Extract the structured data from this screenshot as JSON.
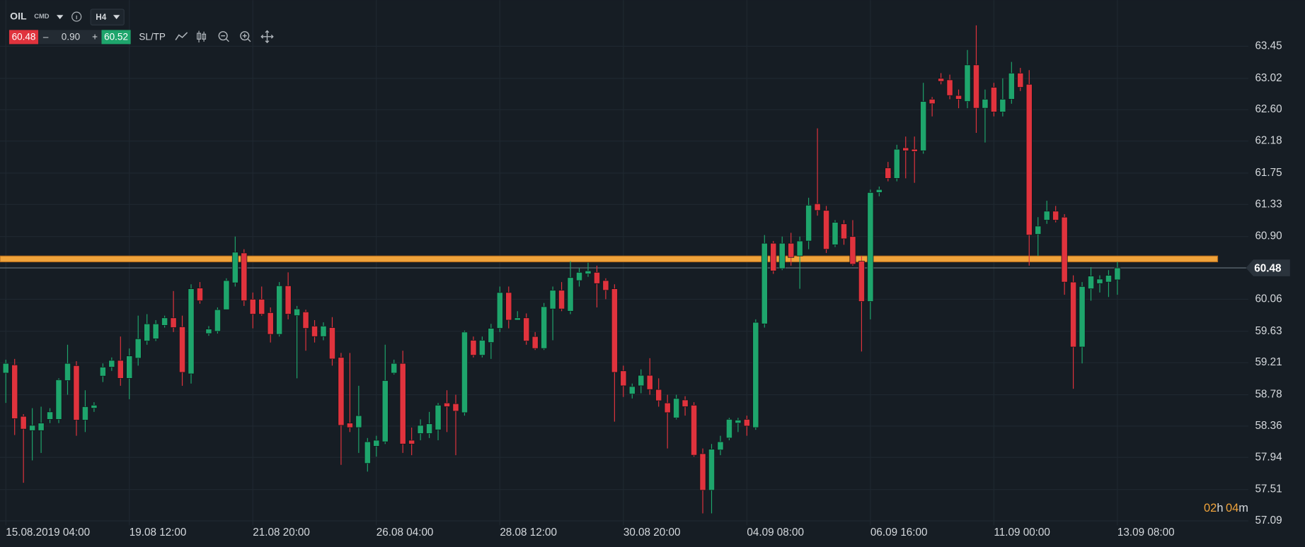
{
  "toolbar": {
    "symbol": "OIL",
    "market": "CMD",
    "timeframe": "H4",
    "bid": "60.48",
    "minus": "–",
    "spread": "0.90",
    "plus": "+",
    "ask": "60.52",
    "sltp": "SL/TP"
  },
  "countdown": {
    "hours": "02",
    "hours_unit": "h",
    "minutes": "04",
    "minutes_unit": "m"
  },
  "chart_data": {
    "type": "candlestick",
    "up_color": "#1ea56c",
    "down_color": "#e0333d",
    "grid": true,
    "level_color": "#f0a33a",
    "level": 60.6,
    "current_price": 60.48,
    "ylim": [
      57.03,
      63.98
    ],
    "yticks": [
      57.09,
      57.51,
      57.94,
      58.36,
      58.78,
      59.21,
      59.63,
      60.06,
      {
        "value": 60.9,
        "label": "60.90"
      },
      61.33,
      61.75,
      62.18,
      {
        "value": 62.6,
        "label": "62.60"
      },
      63.02,
      63.45
    ],
    "categories": [
      "15.08.2019 04:00",
      null,
      null,
      null,
      null,
      null,
      null,
      null,
      null,
      null,
      null,
      null,
      null,
      null,
      "19.08 12:00",
      null,
      null,
      null,
      null,
      null,
      null,
      null,
      null,
      null,
      null,
      null,
      null,
      null,
      "21.08 20:00",
      null,
      null,
      null,
      null,
      null,
      null,
      null,
      null,
      null,
      null,
      null,
      null,
      null,
      "26.08 04:00",
      null,
      null,
      null,
      null,
      null,
      null,
      null,
      null,
      null,
      null,
      null,
      null,
      null,
      "28.08 12:00",
      null,
      null,
      null,
      null,
      null,
      null,
      null,
      null,
      null,
      null,
      null,
      null,
      null,
      "30.08 20:00",
      null,
      null,
      null,
      null,
      null,
      null,
      null,
      null,
      null,
      null,
      null,
      null,
      null,
      "04.09 08:00",
      null,
      null,
      null,
      null,
      null,
      null,
      null,
      null,
      null,
      null,
      null,
      null,
      null,
      "06.09 16:00",
      null,
      null,
      null,
      null,
      null,
      null,
      null,
      null,
      null,
      null,
      null,
      null,
      null,
      "11.09 00:00",
      null,
      null,
      null,
      null,
      null,
      null,
      null,
      null,
      null,
      null,
      null,
      null,
      null,
      "13.09 08:00"
    ],
    "open": [
      59.07,
      59.18,
      58.49,
      58.3,
      58.3,
      58.45,
      58.45,
      58.97,
      59.17,
      58.44,
      58.6,
      59.03,
      59.15,
      59.24,
      59.0,
      59.27,
      59.5,
      59.53,
      59.71,
      59.81,
      59.69,
      59.06,
      60.21,
      59.6,
      59.63,
      59.92,
      60.28,
      60.68,
      60.06,
      60.06,
      59.88,
      59.59,
      60.24,
      59.84,
      59.89,
      59.7,
      59.56,
      59.68,
      59.28,
      58.4,
      58.34,
      57.86,
      58.09,
      58.15,
      59.07,
      59.2,
      58.17,
      58.26,
      58.26,
      58.31,
      58.67,
      58.66,
      58.54,
      59.51,
      59.31,
      59.48,
      59.67,
      60.15,
      59.78,
      59.81,
      59.56,
      59.4,
      59.93,
      60.18,
      59.9,
      60.31,
      60.4,
      60.42,
      60.31,
      60.2,
      59.1,
      58.79,
      58.9,
      59.04,
      58.85,
      58.67,
      58.47,
      58.71,
      58.64,
      57.99,
      57.5,
      58.04,
      58.2,
      58.4,
      58.45,
      58.34,
      59.73,
      60.81,
      60.47,
      60.81,
      60.64,
      60.84,
      61.34,
      61.25,
      60.79,
      61.07,
      60.9,
      60.57,
      60.03,
      61.49,
      61.82,
      61.68,
      62.09,
      62.07,
      62.05,
      62.74,
      63.02,
      63.0,
      62.79,
      62.71,
      63.2,
      62.62,
      62.9,
      62.57,
      62.74,
      63.09,
      62.94,
      60.93,
      61.12,
      61.24,
      61.16,
      60.29,
      59.42,
      60.2,
      60.27,
      60.29,
      60.32
    ],
    "high": [
      59.25,
      59.26,
      58.52,
      58.6,
      58.62,
      58.6,
      59.0,
      59.45,
      59.23,
      58.84,
      58.68,
      59.2,
      59.28,
      59.56,
      59.4,
      59.84,
      59.86,
      59.78,
      59.84,
      60.17,
      59.84,
      60.26,
      60.29,
      59.7,
      59.95,
      60.34,
      60.9,
      60.73,
      60.15,
      60.23,
      59.95,
      60.29,
      60.42,
      59.97,
      59.92,
      59.78,
      59.75,
      59.82,
      59.34,
      59.34,
      58.9,
      58.2,
      58.23,
      59.45,
      59.25,
      59.37,
      58.34,
      58.45,
      58.55,
      58.67,
      58.84,
      58.78,
      59.64,
      59.56,
      59.56,
      59.73,
      60.23,
      60.23,
      59.9,
      59.87,
      59.62,
      60.01,
      60.23,
      60.29,
      60.57,
      60.48,
      60.55,
      60.51,
      60.34,
      60.26,
      59.17,
      58.93,
      59.12,
      59.27,
      59.0,
      58.78,
      58.78,
      58.76,
      58.68,
      58.06,
      58.12,
      58.23,
      58.47,
      58.47,
      58.5,
      59.79,
      60.92,
      60.84,
      60.9,
      60.95,
      60.9,
      61.42,
      62.35,
      61.31,
      61.12,
      61.12,
      61.12,
      60.64,
      61.53,
      61.57,
      61.9,
      62.13,
      62.24,
      62.24,
      62.96,
      62.77,
      63.09,
      63.07,
      62.87,
      63.4,
      63.73,
      62.87,
      62.96,
      63.02,
      63.24,
      63.16,
      63.13,
      61.16,
      61.38,
      61.31,
      61.2,
      60.38,
      60.29,
      60.49,
      60.38,
      60.45,
      60.56
    ],
    "low": [
      58.67,
      58.24,
      57.6,
      57.9,
      58.0,
      58.4,
      58.4,
      58.78,
      58.23,
      58.28,
      58.55,
      58.95,
      59.1,
      58.9,
      58.72,
      59.17,
      59.45,
      59.5,
      59.68,
      59.62,
      58.9,
      58.93,
      60.0,
      59.57,
      59.6,
      59.92,
      60.23,
      59.97,
      59.67,
      59.84,
      59.48,
      59.56,
      59.79,
      59.0,
      59.37,
      59.48,
      59.51,
      59.17,
      57.84,
      58.28,
      58.0,
      57.75,
      57.95,
      58.12,
      59.05,
      58.0,
      57.97,
      58.17,
      58.2,
      58.17,
      58.28,
      57.97,
      58.5,
      59.28,
      59.28,
      59.26,
      59.62,
      59.67,
      59.78,
      59.45,
      59.38,
      59.38,
      59.51,
      59.9,
      59.86,
      60.23,
      60.36,
      59.95,
      60.06,
      58.42,
      58.75,
      58.73,
      58.8,
      58.78,
      58.62,
      58.06,
      58.45,
      58.5,
      57.95,
      57.19,
      57.19,
      57.97,
      58.17,
      58.28,
      58.23,
      58.31,
      59.68,
      60.4,
      60.45,
      60.51,
      60.2,
      60.73,
      61.18,
      60.68,
      60.76,
      60.79,
      60.51,
      59.36,
      59.79,
      61.44,
      61.64,
      61.64,
      61.68,
      61.62,
      62.01,
      62.51,
      62.94,
      62.74,
      62.62,
      62.62,
      62.29,
      62.16,
      62.51,
      62.51,
      62.68,
      62.85,
      60.51,
      60.64,
      61.07,
      61.09,
      60.12,
      58.86,
      59.2,
      60.04,
      60.15,
      60.09,
      60.12
    ],
    "close": [
      59.2,
      58.46,
      58.32,
      58.37,
      58.4,
      58.55,
      58.98,
      59.2,
      58.44,
      58.62,
      58.64,
      59.15,
      59.24,
      59.0,
      59.3,
      59.53,
      59.73,
      59.73,
      59.81,
      59.68,
      59.08,
      60.2,
      60.04,
      59.66,
      59.92,
      60.31,
      60.69,
      60.04,
      59.86,
      59.86,
      59.59,
      60.24,
      59.86,
      59.93,
      59.67,
      59.56,
      59.7,
      59.26,
      58.37,
      58.34,
      58.5,
      58.15,
      58.17,
      58.97,
      59.2,
      58.12,
      58.12,
      58.37,
      58.39,
      58.64,
      58.62,
      58.56,
      59.62,
      59.31,
      59.51,
      59.67,
      60.15,
      59.78,
      59.81,
      59.5,
      59.4,
      59.96,
      60.18,
      59.93,
      60.35,
      60.42,
      60.44,
      60.27,
      60.18,
      59.08,
      58.9,
      58.89,
      59.04,
      58.85,
      58.7,
      58.54,
      58.73,
      58.62,
      57.97,
      57.5,
      58.05,
      58.15,
      58.45,
      58.44,
      58.36,
      59.75,
      60.81,
      60.44,
      60.81,
      60.62,
      60.84,
      61.32,
      61.25,
      60.73,
      61.09,
      60.87,
      60.53,
      60.03,
      61.49,
      61.53,
      61.68,
      62.07,
      62.05,
      62.04,
      62.71,
      62.68,
      62.98,
      62.79,
      62.74,
      63.2,
      62.62,
      62.74,
      62.57,
      62.74,
      63.09,
      62.9,
      60.92,
      61.04,
      61.24,
      61.12,
      60.29,
      59.42,
      60.23,
      60.37,
      60.33,
      60.38,
      60.48
    ]
  }
}
